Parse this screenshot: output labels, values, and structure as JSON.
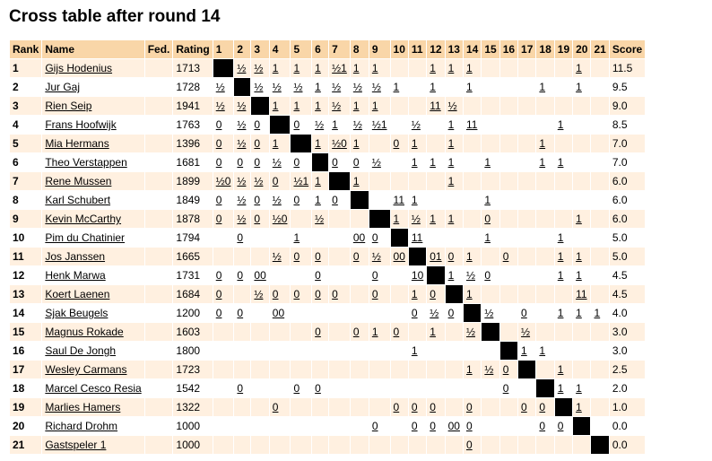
{
  "title": "Cross table after round 14",
  "headers": [
    "Rank",
    "Name",
    "Fed.",
    "Rating",
    "1",
    "2",
    "3",
    "4",
    "5",
    "6",
    "7",
    "8",
    "9",
    "10",
    "11",
    "12",
    "13",
    "14",
    "15",
    "16",
    "17",
    "18",
    "19",
    "20",
    "21",
    "Score"
  ],
  "players": [
    {
      "rank": "1",
      "name": "Gijs Hodenius",
      "fed": "",
      "rating": "1713",
      "results": [
        "X",
        "½",
        "½",
        "1",
        "1",
        "1",
        "½1",
        "1",
        "1",
        "",
        "",
        "1",
        "1",
        "1",
        "",
        "",
        "",
        "",
        "",
        "1",
        ""
      ],
      "score": "11.5"
    },
    {
      "rank": "2",
      "name": "Jur Gaj",
      "fed": "",
      "rating": "1728",
      "results": [
        "½",
        "X",
        "½",
        "½",
        "½",
        "1",
        "½",
        "½",
        "½",
        "1",
        "",
        "1",
        "",
        "1",
        "",
        "",
        "",
        "1",
        "",
        "1",
        ""
      ],
      "score": "9.5"
    },
    {
      "rank": "3",
      "name": "Rien Seip",
      "fed": "",
      "rating": "1941",
      "results": [
        "½",
        "½",
        "X",
        "1",
        "1",
        "1",
        "½",
        "1",
        "1",
        "",
        "",
        "11",
        "½",
        "",
        "",
        "",
        "",
        "",
        "",
        "",
        ""
      ],
      "score": "9.0"
    },
    {
      "rank": "4",
      "name": "Frans Hoofwijk",
      "fed": "",
      "rating": "1763",
      "results": [
        "0",
        "½",
        "0",
        "X",
        "0",
        "½",
        "1",
        "½",
        "½1",
        "",
        "½",
        "",
        "1",
        "11",
        "",
        "",
        "",
        "",
        "1",
        "",
        ""
      ],
      "score": "8.5"
    },
    {
      "rank": "5",
      "name": "Mia Hermans",
      "fed": "",
      "rating": "1396",
      "results": [
        "0",
        "½",
        "0",
        "1",
        "X",
        "1",
        "½0",
        "1",
        "",
        "0",
        "1",
        "",
        "1",
        "",
        "",
        "",
        "",
        "1",
        "",
        "",
        ""
      ],
      "score": "7.0"
    },
    {
      "rank": "6",
      "name": "Theo Verstappen",
      "fed": "",
      "rating": "1681",
      "results": [
        "0",
        "0",
        "0",
        "½",
        "0",
        "X",
        "0",
        "0",
        "½",
        "",
        "1",
        "1",
        "1",
        "",
        "1",
        "",
        "",
        "1",
        "1",
        "",
        ""
      ],
      "score": "7.0"
    },
    {
      "rank": "7",
      "name": "Rene Mussen",
      "fed": "",
      "rating": "1899",
      "results": [
        "½0",
        "½",
        "½",
        "0",
        "½1",
        "1",
        "X",
        "1",
        "",
        "",
        "",
        "",
        "1",
        "",
        "",
        "",
        "",
        "",
        "",
        "",
        ""
      ],
      "score": "6.0"
    },
    {
      "rank": "8",
      "name": "Karl Schubert",
      "fed": "",
      "rating": "1849",
      "results": [
        "0",
        "½",
        "0",
        "½",
        "0",
        "1",
        "0",
        "X",
        "",
        "11",
        "1",
        "",
        "",
        "",
        "1",
        "",
        "",
        "",
        "",
        "",
        ""
      ],
      "score": "6.0"
    },
    {
      "rank": "9",
      "name": "Kevin McCarthy",
      "fed": "",
      "rating": "1878",
      "results": [
        "0",
        "½",
        "0",
        "½0",
        "",
        "½",
        "",
        "",
        "X",
        "1",
        "½",
        "1",
        "1",
        "",
        "0",
        "",
        "",
        "",
        "",
        "1",
        ""
      ],
      "score": "6.0"
    },
    {
      "rank": "10",
      "name": "Pim du Chatinier",
      "fed": "",
      "rating": "1794",
      "results": [
        "",
        "0",
        "",
        "",
        "1",
        "",
        "",
        "00",
        "0",
        "X",
        "11",
        "",
        "",
        "",
        "1",
        "",
        "",
        "",
        "1",
        "",
        ""
      ],
      "score": "5.0"
    },
    {
      "rank": "11",
      "name": "Jos Janssen",
      "fed": "",
      "rating": "1665",
      "results": [
        "",
        "",
        "",
        "½",
        "0",
        "0",
        "",
        "0",
        "½",
        "00",
        "X",
        "01",
        "0",
        "1",
        "",
        "0",
        "",
        "",
        "1",
        "1",
        ""
      ],
      "score": "5.0"
    },
    {
      "rank": "12",
      "name": "Henk Marwa",
      "fed": "",
      "rating": "1731",
      "results": [
        "0",
        "0",
        "00",
        "",
        "",
        "0",
        "",
        "",
        "0",
        "",
        "10",
        "X",
        "1",
        "½",
        "0",
        "",
        "",
        "",
        "1",
        "1",
        ""
      ],
      "score": "4.5"
    },
    {
      "rank": "13",
      "name": "Koert Laenen",
      "fed": "",
      "rating": "1684",
      "results": [
        "0",
        "",
        "½",
        "0",
        "0",
        "0",
        "0",
        "",
        "0",
        "",
        "1",
        "0",
        "X",
        "1",
        "",
        "",
        "",
        "",
        "",
        "11",
        ""
      ],
      "score": "4.5"
    },
    {
      "rank": "14",
      "name": "Sjak Beugels",
      "fed": "",
      "rating": "1200",
      "results": [
        "0",
        "0",
        "",
        "00",
        "",
        "",
        "",
        "",
        "",
        "",
        "0",
        "½",
        "0",
        "X",
        "½",
        "",
        "0",
        "",
        "1",
        "1",
        "1"
      ],
      "score": "4.0"
    },
    {
      "rank": "15",
      "name": "Magnus Rokade",
      "fed": "",
      "rating": "1603",
      "results": [
        "",
        "",
        "",
        "",
        "",
        "0",
        "",
        "0",
        "1",
        "0",
        "",
        "1",
        "",
        "½",
        "X",
        "",
        "½",
        "",
        "",
        "",
        ""
      ],
      "score": "3.0"
    },
    {
      "rank": "16",
      "name": "Saul De Jongh",
      "fed": "",
      "rating": "1800",
      "results": [
        "",
        "",
        "",
        "",
        "",
        "",
        "",
        "",
        "",
        "",
        "1",
        "",
        "",
        "",
        "",
        "X",
        "1",
        "1",
        "",
        "",
        ""
      ],
      "score": "3.0"
    },
    {
      "rank": "17",
      "name": "Wesley Carmans",
      "fed": "",
      "rating": "1723",
      "results": [
        "",
        "",
        "",
        "",
        "",
        "",
        "",
        "",
        "",
        "",
        "",
        "",
        "",
        "1",
        "½",
        "0",
        "X",
        "",
        "1",
        "",
        ""
      ],
      "score": "2.5"
    },
    {
      "rank": "18",
      "name": "Marcel Cesco Resia",
      "fed": "",
      "rating": "1542",
      "results": [
        "",
        "0",
        "",
        "",
        "0",
        "0",
        "",
        "",
        "",
        "",
        "",
        "",
        "",
        "",
        "",
        "0",
        "",
        "X",
        "1",
        "1",
        ""
      ],
      "score": "2.0"
    },
    {
      "rank": "19",
      "name": "Marlies Hamers",
      "fed": "",
      "rating": "1322",
      "results": [
        "",
        "",
        "",
        "0",
        "",
        "",
        "",
        "",
        "",
        "0",
        "0",
        "0",
        "",
        "0",
        "",
        "",
        "0",
        "0",
        "X",
        "1",
        ""
      ],
      "score": "1.0"
    },
    {
      "rank": "20",
      "name": "Richard Drohm",
      "fed": "",
      "rating": "1000",
      "results": [
        "",
        "",
        "",
        "",
        "",
        "",
        "",
        "",
        "0",
        "",
        "0",
        "0",
        "00",
        "0",
        "",
        "",
        "",
        "0",
        "0",
        "X",
        ""
      ],
      "score": "0.0"
    },
    {
      "rank": "21",
      "name": "Gastspeler 1",
      "fed": "",
      "rating": "1000",
      "results": [
        "",
        "",
        "",
        "",
        "",
        "",
        "",
        "",
        "",
        "",
        "",
        "",
        "",
        "0",
        "",
        "",
        "",
        "",
        "",
        "",
        "X"
      ],
      "score": "0.0"
    }
  ]
}
